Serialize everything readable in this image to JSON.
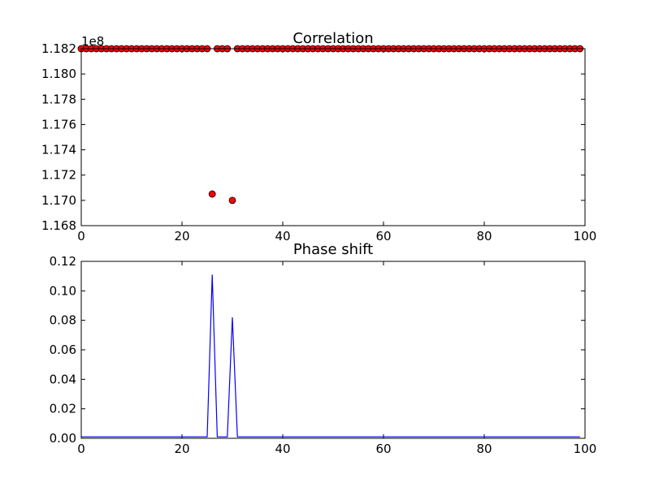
{
  "chart_data": [
    {
      "type": "scatter",
      "title": "Correlation",
      "xlabel": "",
      "ylabel": "",
      "y_offset_text": "1e8",
      "xlim": [
        0,
        100
      ],
      "ylim": [
        1.168,
        1.182
      ],
      "xticks": [
        "0",
        "20",
        "40",
        "60",
        "80",
        "100"
      ],
      "yticks": [
        "1.168",
        "1.170",
        "1.172",
        "1.174",
        "1.176",
        "1.178",
        "1.180",
        "1.182"
      ],
      "marker_color": "#ff0000",
      "baseline_value": 1.182,
      "series": [
        {
          "x": [
            0,
            1,
            2,
            3,
            4,
            5,
            6,
            7,
            8,
            9,
            10,
            11,
            12,
            13,
            14,
            15,
            16,
            17,
            18,
            19,
            20,
            21,
            22,
            23,
            24,
            25,
            26,
            27,
            28,
            29,
            30,
            31,
            32,
            33,
            34,
            35,
            36,
            37,
            38,
            39,
            40,
            41,
            42,
            43,
            44,
            45,
            46,
            47,
            48,
            49,
            50,
            51,
            52,
            53,
            54,
            55,
            56,
            57,
            58,
            59,
            60,
            61,
            62,
            63,
            64,
            65,
            66,
            67,
            68,
            69,
            70,
            71,
            72,
            73,
            74,
            75,
            76,
            77,
            78,
            79,
            80,
            81,
            82,
            83,
            84,
            85,
            86,
            87,
            88,
            89,
            90,
            91,
            92,
            93,
            94,
            95,
            96,
            97,
            98,
            99
          ],
          "y": [
            1.182,
            1.182,
            1.182,
            1.182,
            1.182,
            1.182,
            1.182,
            1.182,
            1.182,
            1.182,
            1.182,
            1.182,
            1.182,
            1.182,
            1.182,
            1.182,
            1.182,
            1.182,
            1.182,
            1.182,
            1.182,
            1.182,
            1.182,
            1.182,
            1.182,
            1.182,
            1.1705,
            1.182,
            1.182,
            1.182,
            1.17,
            1.182,
            1.182,
            1.182,
            1.182,
            1.182,
            1.182,
            1.182,
            1.182,
            1.182,
            1.182,
            1.182,
            1.182,
            1.182,
            1.182,
            1.182,
            1.182,
            1.182,
            1.182,
            1.182,
            1.182,
            1.182,
            1.182,
            1.182,
            1.182,
            1.182,
            1.182,
            1.182,
            1.182,
            1.182,
            1.182,
            1.182,
            1.182,
            1.182,
            1.182,
            1.182,
            1.182,
            1.182,
            1.182,
            1.182,
            1.182,
            1.182,
            1.182,
            1.182,
            1.182,
            1.182,
            1.182,
            1.182,
            1.182,
            1.182,
            1.182,
            1.182,
            1.182,
            1.182,
            1.182,
            1.182,
            1.182,
            1.182,
            1.182,
            1.182,
            1.182,
            1.182,
            1.182,
            1.182,
            1.182,
            1.182,
            1.182,
            1.182,
            1.182,
            1.182
          ]
        }
      ]
    },
    {
      "type": "line",
      "title": "Phase shift",
      "xlabel": "",
      "ylabel": "",
      "xlim": [
        0,
        100
      ],
      "ylim": [
        0.0,
        0.12
      ],
      "xticks": [
        "0",
        "20",
        "40",
        "60",
        "80",
        "100"
      ],
      "yticks": [
        "0.00",
        "0.02",
        "0.04",
        "0.06",
        "0.08",
        "0.10",
        "0.12"
      ],
      "line_color": "#0000ff",
      "series": [
        {
          "x": [
            0,
            1,
            2,
            3,
            4,
            5,
            6,
            7,
            8,
            9,
            10,
            11,
            12,
            13,
            14,
            15,
            16,
            17,
            18,
            19,
            20,
            21,
            22,
            23,
            24,
            25,
            26,
            27,
            28,
            29,
            30,
            31,
            32,
            33,
            34,
            35,
            36,
            37,
            38,
            39,
            40,
            41,
            42,
            43,
            44,
            45,
            46,
            47,
            48,
            49,
            50,
            51,
            52,
            53,
            54,
            55,
            56,
            57,
            58,
            59,
            60,
            61,
            62,
            63,
            64,
            65,
            66,
            67,
            68,
            69,
            70,
            71,
            72,
            73,
            74,
            75,
            76,
            77,
            78,
            79,
            80,
            81,
            82,
            83,
            84,
            85,
            86,
            87,
            88,
            89,
            90,
            91,
            92,
            93,
            94,
            95,
            96,
            97,
            98,
            99
          ],
          "y": [
            0.001,
            0.001,
            0.001,
            0.001,
            0.001,
            0.001,
            0.001,
            0.001,
            0.001,
            0.001,
            0.001,
            0.001,
            0.001,
            0.001,
            0.001,
            0.001,
            0.001,
            0.001,
            0.001,
            0.001,
            0.001,
            0.001,
            0.001,
            0.001,
            0.001,
            0.001,
            0.111,
            0.001,
            0.001,
            0.001,
            0.082,
            0.001,
            0.001,
            0.001,
            0.001,
            0.001,
            0.001,
            0.001,
            0.001,
            0.001,
            0.001,
            0.001,
            0.001,
            0.001,
            0.001,
            0.001,
            0.001,
            0.001,
            0.001,
            0.001,
            0.001,
            0.001,
            0.001,
            0.001,
            0.001,
            0.001,
            0.001,
            0.001,
            0.001,
            0.001,
            0.001,
            0.001,
            0.001,
            0.001,
            0.001,
            0.001,
            0.001,
            0.001,
            0.001,
            0.001,
            0.001,
            0.001,
            0.001,
            0.001,
            0.001,
            0.001,
            0.001,
            0.001,
            0.001,
            0.001,
            0.001,
            0.001,
            0.001,
            0.001,
            0.001,
            0.001,
            0.001,
            0.001,
            0.001,
            0.001,
            0.001,
            0.001,
            0.001,
            0.001,
            0.001,
            0.001,
            0.001,
            0.001,
            0.001,
            0.001
          ]
        }
      ]
    }
  ]
}
